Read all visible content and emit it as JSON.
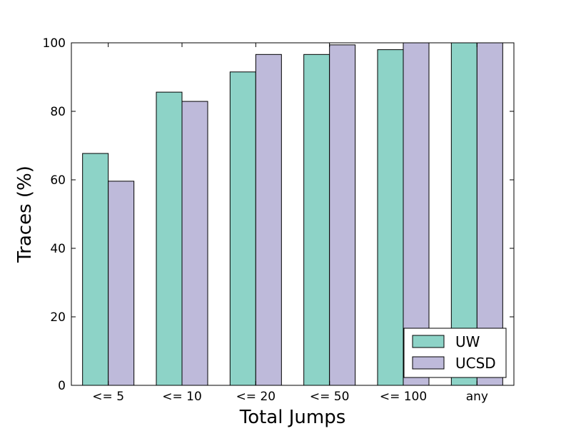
{
  "chart_data": {
    "type": "bar",
    "title": "",
    "xlabel": "Total Jumps",
    "ylabel": "Traces (%)",
    "categories": [
      "<= 5",
      "<= 10",
      "<= 20",
      "<= 50",
      "<= 100",
      "any"
    ],
    "series": [
      {
        "name": "UW",
        "values": [
          67.7,
          85.6,
          91.5,
          96.6,
          98.0,
          100
        ],
        "color": "#8dd3c7"
      },
      {
        "name": "UCSD",
        "values": [
          59.6,
          82.9,
          96.6,
          99.4,
          100,
          100
        ],
        "color": "#bebada"
      }
    ],
    "ylim": [
      0,
      100
    ],
    "yticks": [
      0,
      20,
      40,
      60,
      80,
      100
    ],
    "grid": false,
    "legend_position": "lower-right"
  }
}
